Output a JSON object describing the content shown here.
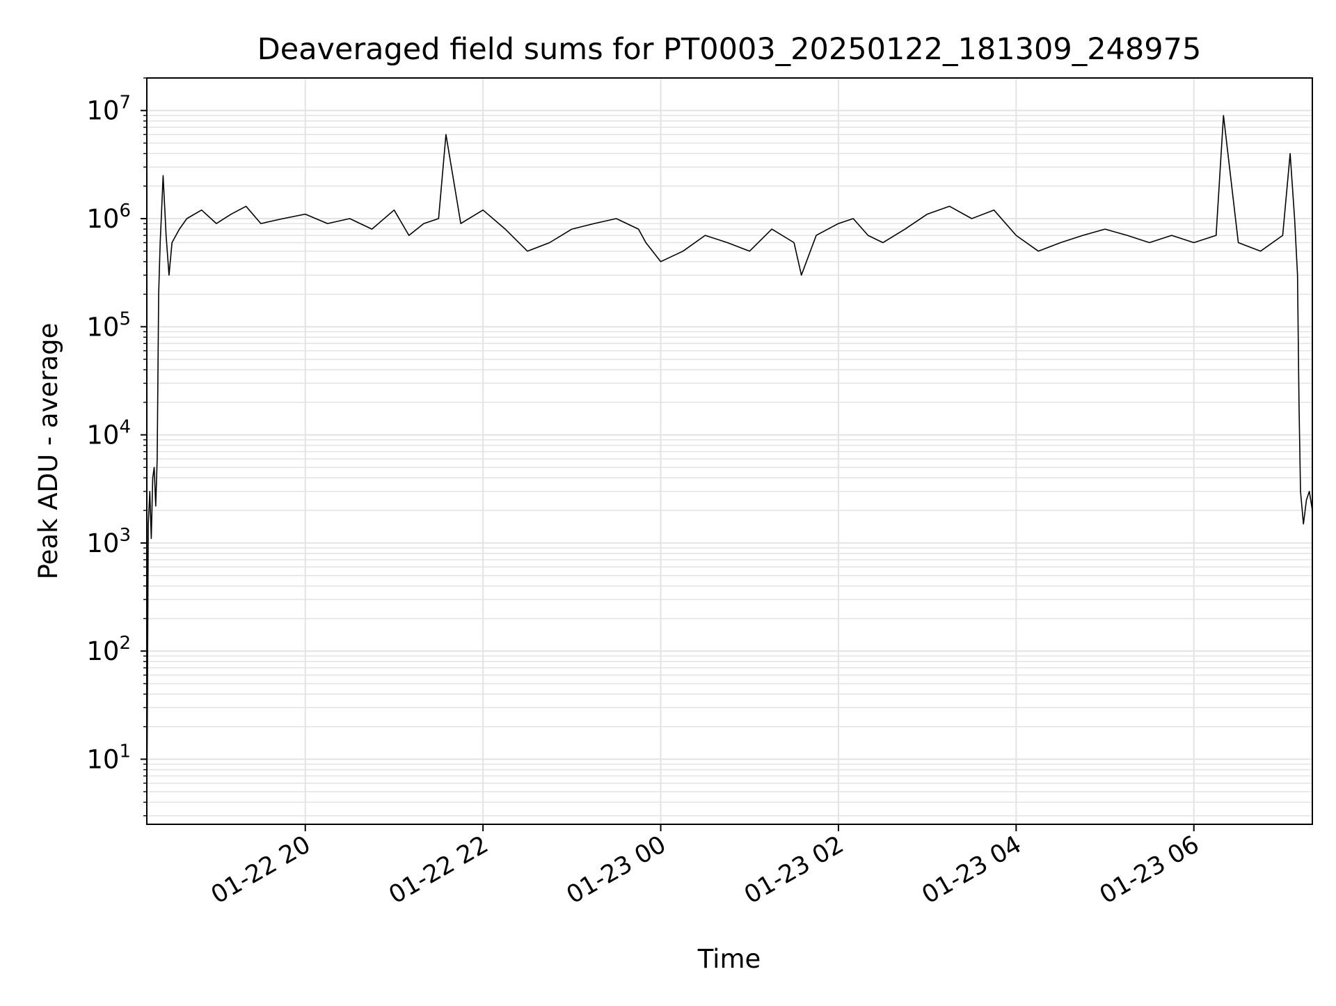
{
  "chart_data": {
    "type": "line",
    "title": "Deaveraged field sums for PT0003_20250122_181309_248975",
    "xlabel": "Time",
    "ylabel": "Peak ADU - average",
    "x_axis": {
      "type": "time",
      "range": [
        "2025-01-22 18:13",
        "2025-01-23 07:20"
      ],
      "ticks": [
        {
          "value": "2025-01-22 20:00",
          "label": "01-22 20"
        },
        {
          "value": "2025-01-22 22:00",
          "label": "01-22 22"
        },
        {
          "value": "2025-01-23 00:00",
          "label": "01-23 00"
        },
        {
          "value": "2025-01-23 02:00",
          "label": "01-23 02"
        },
        {
          "value": "2025-01-23 04:00",
          "label": "01-23 04"
        },
        {
          "value": "2025-01-23 06:00",
          "label": "01-23 06"
        }
      ]
    },
    "y_axis": {
      "scale": "log",
      "range": [
        2.5,
        20000000
      ],
      "ticks": [
        {
          "value": 10,
          "base": "10",
          "exp": "1"
        },
        {
          "value": 100,
          "base": "10",
          "exp": "2"
        },
        {
          "value": 1000,
          "base": "10",
          "exp": "3"
        },
        {
          "value": 10000,
          "base": "10",
          "exp": "4"
        },
        {
          "value": 100000,
          "base": "10",
          "exp": "5"
        },
        {
          "value": 1000000,
          "base": "10",
          "exp": "6"
        },
        {
          "value": 10000000,
          "base": "10",
          "exp": "7"
        }
      ]
    },
    "grid": true,
    "line_color": "#000000",
    "series": [
      {
        "x": [
          "2025-01-22 18:13",
          "2025-01-22 18:14",
          "2025-01-22 18:15",
          "2025-01-22 18:16",
          "2025-01-22 18:17",
          "2025-01-22 18:18",
          "2025-01-22 18:19",
          "2025-01-22 18:20",
          "2025-01-22 18:21",
          "2025-01-22 18:22",
          "2025-01-22 18:23",
          "2025-01-22 18:24",
          "2025-01-22 18:26",
          "2025-01-22 18:28",
          "2025-01-22 18:30",
          "2025-01-22 18:35",
          "2025-01-22 18:40",
          "2025-01-22 18:50",
          "2025-01-22 19:00",
          "2025-01-22 19:10",
          "2025-01-22 19:20",
          "2025-01-22 19:30",
          "2025-01-22 19:45",
          "2025-01-22 20:00",
          "2025-01-22 20:15",
          "2025-01-22 20:30",
          "2025-01-22 20:45",
          "2025-01-22 21:00",
          "2025-01-22 21:10",
          "2025-01-22 21:20",
          "2025-01-22 21:30",
          "2025-01-22 21:35",
          "2025-01-22 21:45",
          "2025-01-22 22:00",
          "2025-01-22 22:15",
          "2025-01-22 22:30",
          "2025-01-22 22:45",
          "2025-01-22 23:00",
          "2025-01-22 23:15",
          "2025-01-22 23:30",
          "2025-01-22 23:45",
          "2025-01-22 23:50",
          "2025-01-23 00:00",
          "2025-01-23 00:15",
          "2025-01-23 00:30",
          "2025-01-23 00:45",
          "2025-01-23 01:00",
          "2025-01-23 01:15",
          "2025-01-23 01:30",
          "2025-01-23 01:35",
          "2025-01-23 01:45",
          "2025-01-23 02:00",
          "2025-01-23 02:10",
          "2025-01-23 02:20",
          "2025-01-23 02:30",
          "2025-01-23 02:45",
          "2025-01-23 03:00",
          "2025-01-23 03:15",
          "2025-01-23 03:30",
          "2025-01-23 03:45",
          "2025-01-23 04:00",
          "2025-01-23 04:15",
          "2025-01-23 04:30",
          "2025-01-23 04:45",
          "2025-01-23 05:00",
          "2025-01-23 05:15",
          "2025-01-23 05:30",
          "2025-01-23 05:45",
          "2025-01-23 06:00",
          "2025-01-23 06:15",
          "2025-01-23 06:20",
          "2025-01-23 06:30",
          "2025-01-23 06:45",
          "2025-01-23 07:00",
          "2025-01-23 07:05",
          "2025-01-23 07:08",
          "2025-01-23 07:10",
          "2025-01-23 07:11",
          "2025-01-23 07:12",
          "2025-01-23 07:14",
          "2025-01-23 07:16",
          "2025-01-23 07:18",
          "2025-01-23 07:20"
        ],
        "y": [
          3,
          1500,
          3000,
          1100,
          4000,
          5000,
          2200,
          6000,
          200000,
          600000,
          1200000,
          2500000,
          700000,
          300000,
          600000,
          800000,
          1000000,
          1200000,
          900000,
          1100000,
          1300000,
          900000,
          1000000,
          1100000,
          900000,
          1000000,
          800000,
          1200000,
          700000,
          900000,
          1000000,
          6000000,
          900000,
          1200000,
          800000,
          500000,
          600000,
          800000,
          900000,
          1000000,
          800000,
          600000,
          400000,
          500000,
          700000,
          600000,
          500000,
          800000,
          600000,
          300000,
          700000,
          900000,
          1000000,
          700000,
          600000,
          800000,
          1100000,
          1300000,
          1000000,
          1200000,
          700000,
          500000,
          600000,
          700000,
          800000,
          700000,
          600000,
          700000,
          600000,
          700000,
          9000000,
          600000,
          500000,
          700000,
          4000000,
          1000000,
          300000,
          20000,
          3000,
          1500,
          2500,
          3000,
          2000
        ]
      }
    ]
  }
}
